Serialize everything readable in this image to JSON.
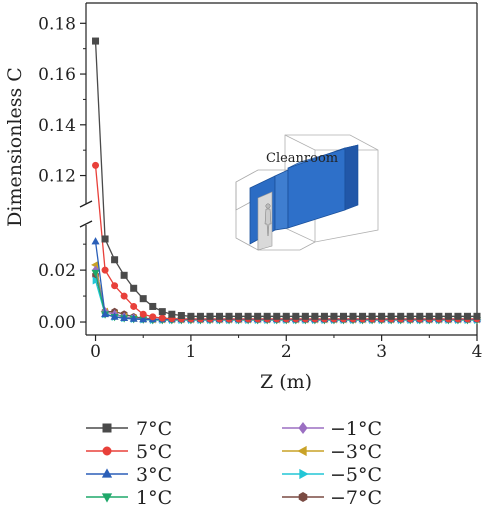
{
  "chart_data": {
    "type": "line",
    "xlabel": "Z (m)",
    "ylabel": "Dimensionless C",
    "xlim": [
      -0.1,
      4.0
    ],
    "ylim_lower": [
      -0.005,
      0.037
    ],
    "ylim_upper": [
      0.108,
      0.188
    ],
    "axis_break": true,
    "x_ticks": [
      "0",
      "1",
      "2",
      "3",
      "4"
    ],
    "y_ticks_lower": [
      "0.00",
      "0.02"
    ],
    "y_ticks_upper": [
      "0.12",
      "0.14",
      "0.16",
      "0.18"
    ],
    "grid": false,
    "legend_position": "below",
    "inset_label": "Cleanroom",
    "x": [
      0.0,
      0.1,
      0.2,
      0.3,
      0.4,
      0.5,
      0.6,
      0.7,
      0.8,
      0.9,
      1.0,
      1.1,
      1.2,
      1.3,
      1.4,
      1.5,
      1.6,
      1.7,
      1.8,
      1.9,
      2.0,
      2.1,
      2.2,
      2.3,
      2.4,
      2.5,
      2.6,
      2.7,
      2.8,
      2.9,
      3.0,
      3.1,
      3.2,
      3.3,
      3.4,
      3.5,
      3.6,
      3.7,
      3.8,
      3.9,
      4.0
    ],
    "series": [
      {
        "name": "7°C",
        "color": "#4a4a4a",
        "marker": "square",
        "values": [
          0.173,
          0.032,
          0.024,
          0.018,
          0.013,
          0.009,
          0.006,
          0.004,
          0.003,
          0.0025,
          0.0022,
          0.0022,
          0.0022,
          0.0022,
          0.0022,
          0.0022,
          0.0022,
          0.0022,
          0.0022,
          0.0022,
          0.0022,
          0.0022,
          0.0022,
          0.0022,
          0.0022,
          0.0022,
          0.0022,
          0.0022,
          0.0022,
          0.0022,
          0.0022,
          0.0022,
          0.0022,
          0.0022,
          0.0022,
          0.0022,
          0.0022,
          0.0022,
          0.0022,
          0.0022,
          0.0022
        ]
      },
      {
        "name": "5°C",
        "color": "#e8403a",
        "marker": "circle",
        "values": [
          0.124,
          0.02,
          0.014,
          0.01,
          0.006,
          0.003,
          0.002,
          0.0015,
          0.0013,
          0.0012,
          0.0012,
          0.0012,
          0.0012,
          0.0012,
          0.0012,
          0.0012,
          0.0012,
          0.0012,
          0.0012,
          0.0012,
          0.0012,
          0.0012,
          0.0012,
          0.0012,
          0.0012,
          0.0012,
          0.0012,
          0.0012,
          0.0012,
          0.0012,
          0.0012,
          0.0012,
          0.0012,
          0.0012,
          0.0012,
          0.0012,
          0.0012,
          0.0012,
          0.0012,
          0.0012,
          0.0012
        ]
      },
      {
        "name": "3°C",
        "color": "#2b5fb8",
        "marker": "triangle-up",
        "values": [
          0.031,
          0.003,
          0.002,
          0.0015,
          0.0012,
          0.001,
          0.001,
          0.001,
          0.001,
          0.001,
          0.001,
          0.001,
          0.001,
          0.001,
          0.001,
          0.001,
          0.001,
          0.001,
          0.001,
          0.001,
          0.001,
          0.001,
          0.001,
          0.001,
          0.001,
          0.001,
          0.001,
          0.001,
          0.001,
          0.001,
          0.001,
          0.001,
          0.001,
          0.001,
          0.001,
          0.001,
          0.001,
          0.001,
          0.001,
          0.001,
          0.001
        ]
      },
      {
        "name": "1°C",
        "color": "#1fa86a",
        "marker": "triangle-down",
        "values": [
          0.019,
          0.003,
          0.002,
          0.0015,
          0.0012,
          0.001,
          0.0008,
          0.0008,
          0.0008,
          0.0008,
          0.0008,
          0.0008,
          0.0008,
          0.0008,
          0.0008,
          0.0008,
          0.0008,
          0.0008,
          0.0008,
          0.0008,
          0.0008,
          0.0008,
          0.0008,
          0.0008,
          0.0008,
          0.0008,
          0.0008,
          0.0008,
          0.0008,
          0.0008,
          0.0008,
          0.0008,
          0.0008,
          0.0008,
          0.0008,
          0.0008,
          0.0008,
          0.0008,
          0.0008,
          0.0008,
          0.0008
        ]
      },
      {
        "name": "−1°C",
        "color": "#9b6fc2",
        "marker": "diamond",
        "values": [
          0.02,
          0.004,
          0.003,
          0.002,
          0.0015,
          0.0012,
          0.001,
          0.001,
          0.001,
          0.001,
          0.001,
          0.001,
          0.001,
          0.001,
          0.001,
          0.001,
          0.001,
          0.001,
          0.001,
          0.001,
          0.001,
          0.001,
          0.001,
          0.001,
          0.001,
          0.001,
          0.001,
          0.001,
          0.001,
          0.001,
          0.001,
          0.001,
          0.001,
          0.001,
          0.001,
          0.001,
          0.001,
          0.001,
          0.001,
          0.001,
          0.001
        ]
      },
      {
        "name": "−3°C",
        "color": "#c9a227",
        "marker": "triangle-left",
        "values": [
          0.022,
          0.004,
          0.003,
          0.002,
          0.0015,
          0.0012,
          0.001,
          0.001,
          0.001,
          0.001,
          0.001,
          0.001,
          0.001,
          0.001,
          0.001,
          0.001,
          0.001,
          0.001,
          0.001,
          0.001,
          0.001,
          0.001,
          0.001,
          0.001,
          0.001,
          0.001,
          0.001,
          0.001,
          0.001,
          0.001,
          0.001,
          0.001,
          0.001,
          0.001,
          0.001,
          0.001,
          0.001,
          0.001,
          0.001,
          0.001,
          0.001
        ]
      },
      {
        "name": "−5°C",
        "color": "#22c6d6",
        "marker": "triangle-right",
        "values": [
          0.016,
          0.003,
          0.002,
          0.0015,
          0.0012,
          0.001,
          0.0008,
          0.0008,
          0.0008,
          0.0008,
          0.0008,
          0.0008,
          0.0008,
          0.0008,
          0.0008,
          0.0008,
          0.0008,
          0.0008,
          0.0008,
          0.0008,
          0.0008,
          0.0008,
          0.0008,
          0.0008,
          0.0008,
          0.0008,
          0.0008,
          0.0008,
          0.0008,
          0.0008,
          0.0008,
          0.0008,
          0.0008,
          0.0008,
          0.0008,
          0.0008,
          0.0008,
          0.0008,
          0.0008,
          0.0008,
          0.0008
        ]
      },
      {
        "name": "−7°C",
        "color": "#7a4a42",
        "marker": "hexagon",
        "values": [
          0.018,
          0.004,
          0.004,
          0.003,
          0.002,
          0.0015,
          0.0012,
          0.001,
          0.001,
          0.001,
          0.001,
          0.001,
          0.001,
          0.001,
          0.001,
          0.001,
          0.001,
          0.001,
          0.001,
          0.001,
          0.001,
          0.001,
          0.001,
          0.001,
          0.001,
          0.001,
          0.001,
          0.001,
          0.001,
          0.001,
          0.001,
          0.001,
          0.001,
          0.001,
          0.001,
          0.001,
          0.001,
          0.001,
          0.001,
          0.001,
          0.001
        ]
      }
    ]
  }
}
